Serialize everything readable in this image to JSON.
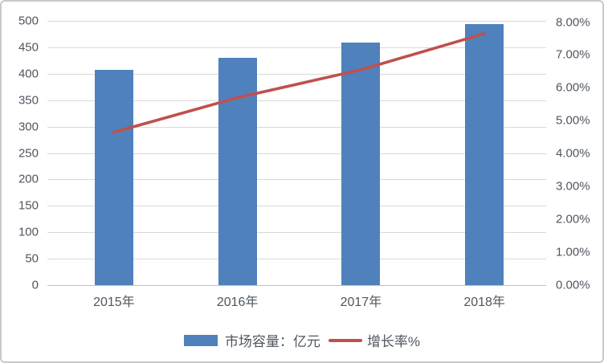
{
  "chart_data": {
    "type": "bar",
    "subtype": "combo-bar-line",
    "title": "",
    "categories": [
      "2015年",
      "2016年",
      "2017年",
      "2018年"
    ],
    "series": [
      {
        "name": "市场容量：亿元",
        "type": "bar",
        "axis": "left",
        "values": [
          407,
          430,
          459,
          494
        ],
        "color": "#4f81bd"
      },
      {
        "name": "增长率%",
        "type": "line",
        "axis": "right",
        "values": [
          4.65,
          5.7,
          6.55,
          7.65
        ],
        "color": "#c0504d"
      }
    ],
    "left_axis": {
      "min": 0,
      "max": 500,
      "step": 50,
      "tick_labels": [
        "0",
        "50",
        "100",
        "150",
        "200",
        "250",
        "300",
        "350",
        "400",
        "450",
        "500"
      ]
    },
    "right_axis": {
      "min": 0,
      "max": 8,
      "step": 1,
      "tick_labels": [
        "0.00%",
        "1.00%",
        "2.00%",
        "3.00%",
        "4.00%",
        "5.00%",
        "6.00%",
        "7.00%",
        "8.00%"
      ]
    },
    "grid": true,
    "legend_position": "bottom"
  },
  "legend": {
    "bar_label": "市场容量：亿元",
    "line_label": "增长率%"
  },
  "colors": {
    "bar": "#4f81bd",
    "line": "#c0504d",
    "gridline": "#d9d9d9",
    "axis_line": "#bfbfbf",
    "tick_text": "#4f565f",
    "border": "#c9c9c9",
    "background": "#ffffff"
  }
}
